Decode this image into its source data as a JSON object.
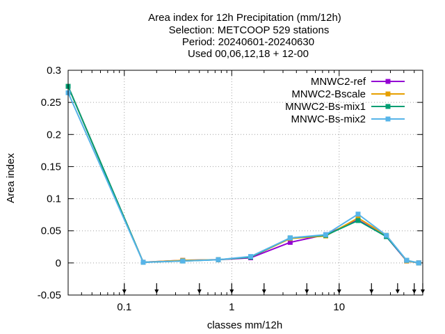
{
  "chart_data": {
    "type": "line",
    "title_lines": [
      "Area index  for 12h Precipitation (mm/12h)",
      "Selection: METCOOP    529 stations",
      "Period: 20240601-20240630",
      "Used 00,06,12,18 + 12-00"
    ],
    "xlabel": "classes mm/12h",
    "ylabel": "Area index",
    "xscale": "log",
    "xlim": [
      0.03,
      60
    ],
    "ylim": [
      -0.05,
      0.3
    ],
    "xticks": [
      {
        "value": 0.1,
        "label": "0.1"
      },
      {
        "value": 1,
        "label": "1"
      },
      {
        "value": 10,
        "label": "10"
      }
    ],
    "yticks": [
      {
        "value": -0.05,
        "label": "-0.05"
      },
      {
        "value": 0,
        "label": "0"
      },
      {
        "value": 0.05,
        "label": "0.05"
      },
      {
        "value": 0.1,
        "label": "0.1"
      },
      {
        "value": 0.15,
        "label": "0.15"
      },
      {
        "value": 0.2,
        "label": "0.2"
      },
      {
        "value": 0.25,
        "label": "0.25"
      },
      {
        "value": 0.3,
        "label": "0.3"
      }
    ],
    "threshold_markers": [
      0.1,
      0.2,
      0.5,
      1,
      2,
      5,
      10,
      20,
      35,
      50,
      60
    ],
    "grid": true,
    "legend_position": "top-right",
    "x": [
      0.03,
      0.15,
      0.35,
      0.75,
      1.5,
      3.5,
      7.5,
      15,
      27.5,
      42.5,
      55
    ],
    "series": [
      {
        "name": "MNWC2-ref",
        "color": "#9400d3",
        "values": [
          0.275,
          0.001,
          0.004,
          0.005,
          0.008,
          0.032,
          0.044,
          0.067,
          0.041,
          0.003,
          0.0
        ]
      },
      {
        "name": "MNWC2-Bscale",
        "color": "#e69f00",
        "values": [
          0.275,
          0.001,
          0.004,
          0.005,
          0.009,
          0.038,
          0.042,
          0.07,
          0.043,
          0.003,
          0.0
        ]
      },
      {
        "name": "MNWC2-Bs-mix1",
        "color": "#009e73",
        "values": [
          0.275,
          0.001,
          0.003,
          0.005,
          0.009,
          0.039,
          0.043,
          0.066,
          0.041,
          0.004,
          0.0
        ]
      },
      {
        "name": "MNWC-Bs-mix2",
        "color": "#56b4e9",
        "values": [
          0.265,
          0.001,
          0.003,
          0.005,
          0.01,
          0.039,
          0.044,
          0.076,
          0.043,
          0.004,
          0.0
        ]
      }
    ]
  }
}
